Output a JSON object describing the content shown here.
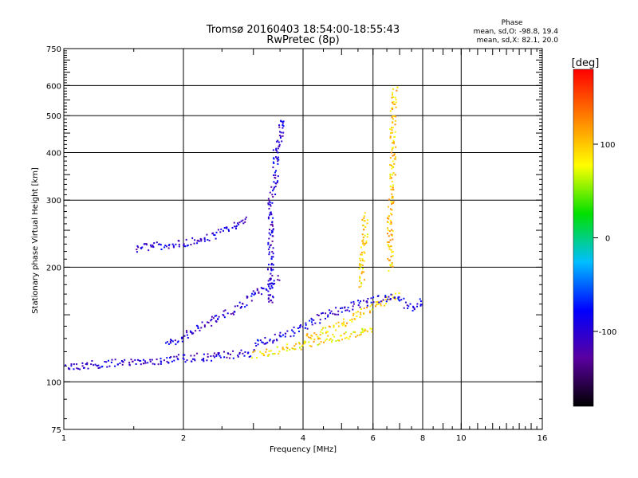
{
  "chart_data": {
    "type": "scatter",
    "title": "Tromsø 20160403 18:54:00-18:55:43",
    "subtitle": "RwPretec (8p)",
    "xlabel": "Frequency [MHz]",
    "ylabel": "Stationary phase Virtual Height [km]",
    "x_scale": "log",
    "y_scale": "log",
    "xlim": [
      1,
      16
    ],
    "ylim": [
      75,
      750
    ],
    "x_ticks": [
      1,
      2,
      4,
      6,
      8,
      10,
      16
    ],
    "y_ticks": [
      75,
      100,
      200,
      300,
      400,
      500,
      600,
      750
    ],
    "grid": true,
    "phase_info": {
      "title": "Phase",
      "line_o": "mean, sd,O: -98.8, 19.4",
      "line_x": "mean, sd,X:  82.1, 20.0"
    },
    "colorbar": {
      "label": "[deg]",
      "min": -180,
      "max": 180,
      "ticks": [
        100,
        0,
        -100
      ],
      "colors": [
        "#000000",
        "#5a00a0",
        "#0000ff",
        "#00bfff",
        "#00e000",
        "#ffff00",
        "#ff8000",
        "#ff0000"
      ]
    },
    "traces": [
      {
        "name": "o-trace-low",
        "phase": -100,
        "points": [
          [
            1.0,
            110
          ],
          [
            1.1,
            111
          ],
          [
            1.3,
            112
          ],
          [
            1.5,
            113
          ],
          [
            1.8,
            115
          ],
          [
            2.0,
            116
          ],
          [
            2.4,
            117
          ],
          [
            2.8,
            119
          ],
          [
            3.0,
            120
          ]
        ]
      },
      {
        "name": "x-trace-low",
        "phase": 90,
        "points": [
          [
            3.0,
            118
          ],
          [
            3.3,
            120
          ],
          [
            3.6,
            123
          ],
          [
            4.0,
            126
          ],
          [
            4.5,
            130
          ],
          [
            5.0,
            132
          ],
          [
            5.5,
            135
          ],
          [
            6.0,
            137
          ]
        ]
      },
      {
        "name": "x-trace-upper",
        "phase": 95,
        "points": [
          [
            4.0,
            130
          ],
          [
            4.5,
            136
          ],
          [
            5.0,
            142
          ],
          [
            5.5,
            150
          ],
          [
            6.0,
            160
          ],
          [
            6.5,
            165
          ],
          [
            7.0,
            170
          ]
        ]
      },
      {
        "name": "o-trace-mid",
        "phase": -95,
        "points": [
          [
            3.0,
            126
          ],
          [
            3.5,
            132
          ],
          [
            4.0,
            140
          ],
          [
            4.5,
            150
          ],
          [
            5.0,
            156
          ],
          [
            5.5,
            160
          ],
          [
            6.0,
            165
          ],
          [
            6.5,
            168
          ],
          [
            7.0,
            164
          ],
          [
            7.5,
            157
          ],
          [
            8.0,
            165
          ]
        ]
      },
      {
        "name": "o-trace-rising",
        "phase": -100,
        "points": [
          [
            1.8,
            125
          ],
          [
            2.0,
            132
          ],
          [
            2.2,
            140
          ],
          [
            2.5,
            150
          ],
          [
            2.8,
            160
          ],
          [
            3.0,
            170
          ],
          [
            3.2,
            178
          ],
          [
            3.5,
            190
          ]
        ]
      },
      {
        "name": "spread-f-upper",
        "phase": -100,
        "points": [
          [
            1.5,
            225
          ],
          [
            1.7,
            228
          ],
          [
            2.0,
            232
          ],
          [
            2.3,
            240
          ],
          [
            2.6,
            255
          ],
          [
            2.9,
            270
          ]
        ]
      },
      {
        "name": "column-3.3",
        "phase": -100,
        "points": [
          [
            3.3,
            160
          ],
          [
            3.3,
            200
          ],
          [
            3.3,
            250
          ],
          [
            3.3,
            300
          ],
          [
            3.4,
            350
          ],
          [
            3.4,
            400
          ],
          [
            3.5,
            450
          ],
          [
            3.5,
            500
          ]
        ]
      },
      {
        "name": "column-5.7",
        "phase": 90,
        "points": [
          [
            5.6,
            180
          ],
          [
            5.6,
            210
          ],
          [
            5.7,
            240
          ],
          [
            5.7,
            280
          ]
        ]
      },
      {
        "name": "column-6.6",
        "phase": 100,
        "points": [
          [
            6.6,
            200
          ],
          [
            6.6,
            280
          ],
          [
            6.7,
            340
          ],
          [
            6.7,
            400
          ],
          [
            6.7,
            500
          ],
          [
            6.8,
            600
          ]
        ]
      }
    ]
  }
}
